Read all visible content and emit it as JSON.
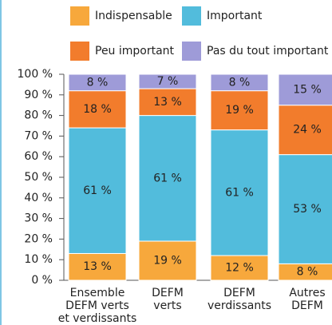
{
  "chart_data": {
    "type": "stacked_bar",
    "categories": [
      "Ensemble\nDEFM verts\net verdissants",
      "DEFM\nverts",
      "DEFM\nverdissants",
      "Autres\nDEFM"
    ],
    "series": [
      {
        "name": "Indispensable",
        "color": "#f7a83c",
        "values": [
          13,
          19,
          12,
          8
        ],
        "value_labels": [
          "13 %",
          "19 %",
          "12 %",
          "8 %"
        ]
      },
      {
        "name": "Important",
        "color": "#52bcdc",
        "values": [
          61,
          61,
          61,
          53
        ],
        "value_labels": [
          "61 %",
          "61 %",
          "61 %",
          "53 %"
        ]
      },
      {
        "name": "Peu important",
        "color": "#f27c2c",
        "values": [
          18,
          13,
          19,
          24
        ],
        "value_labels": [
          "18 %",
          "13 %",
          "19 %",
          "24 %"
        ]
      },
      {
        "name": "Pas du tout important",
        "color": "#9e9bd8",
        "values": [
          8,
          7,
          8,
          15
        ],
        "value_labels": [
          "8 %",
          "7 %",
          "8 %",
          "15 %"
        ]
      }
    ],
    "ylim": [
      0,
      100
    ],
    "yticks": [
      {
        "value": 0,
        "label": "0 %"
      },
      {
        "value": 10,
        "label": "10 %"
      },
      {
        "value": 20,
        "label": "20 %"
      },
      {
        "value": 30,
        "label": "30 %"
      },
      {
        "value": 40,
        "label": "40 %"
      },
      {
        "value": 50,
        "label": "50 %"
      },
      {
        "value": 60,
        "label": "60 %"
      },
      {
        "value": 70,
        "label": "70 %"
      },
      {
        "value": 80,
        "label": "80 %"
      },
      {
        "value": 90,
        "label": "90 %"
      },
      {
        "value": 100,
        "label": "100 %"
      }
    ],
    "grid": false
  }
}
